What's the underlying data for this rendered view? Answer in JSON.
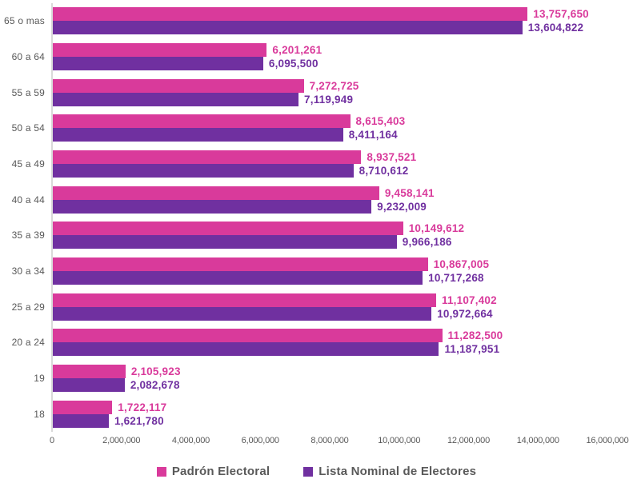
{
  "chart_data": {
    "type": "bar",
    "orientation": "horizontal",
    "title": "",
    "xlabel": "",
    "ylabel": "",
    "categories": [
      "65 o mas",
      "60 a 64",
      "55 a 59",
      "50 a 54",
      "45 a 49",
      "40 a 44",
      "35 a 39",
      "30 a 34",
      "25 a 29",
      "20 a 24",
      "19",
      "18"
    ],
    "series": [
      {
        "name": "Padrón Electoral",
        "color": "#D93A9B",
        "values": [
          13757650,
          6201261,
          7272725,
          8615403,
          8937521,
          9458141,
          10149612,
          10867005,
          11107402,
          11282500,
          2105923,
          1722117
        ],
        "labels": [
          "13,757,650",
          "6,201,261",
          "7,272,725",
          "8,615,403",
          "8,937,521",
          "9,458,141",
          "10,149,612",
          "10,867,005",
          "11,107,402",
          "11,282,500",
          "2,105,923",
          "1,722,117"
        ]
      },
      {
        "name": "Lista Nominal de Electores",
        "color": "#7030A0",
        "values": [
          13604822,
          6095500,
          7119949,
          8411164,
          8710612,
          9232009,
          9966186,
          10717268,
          10972664,
          11187951,
          2082678,
          1621780
        ],
        "labels": [
          "13,604,822",
          "6,095,500",
          "7,119,949",
          "8,411,164",
          "8,710,612",
          "9,232,009",
          "9,966,186",
          "10,717,268",
          "10,972,664",
          "11,187,951",
          "2,082,678",
          "1,621,780"
        ]
      }
    ],
    "xlim": [
      0,
      16000000
    ],
    "x_ticks": [
      "0",
      "2,000,000",
      "4,000,000",
      "6,000,000",
      "8,000,000",
      "10,000,000",
      "12,000,000",
      "14,000,000",
      "16,000,000"
    ],
    "grid": false,
    "legend": {
      "position": "bottom",
      "entries": [
        "Padrón Electoral",
        "Lista Nominal de Electores"
      ]
    }
  },
  "style": {
    "axis_line_color": "#D9D9D9",
    "text_color": "#595959",
    "background": "#FFFFFF"
  }
}
